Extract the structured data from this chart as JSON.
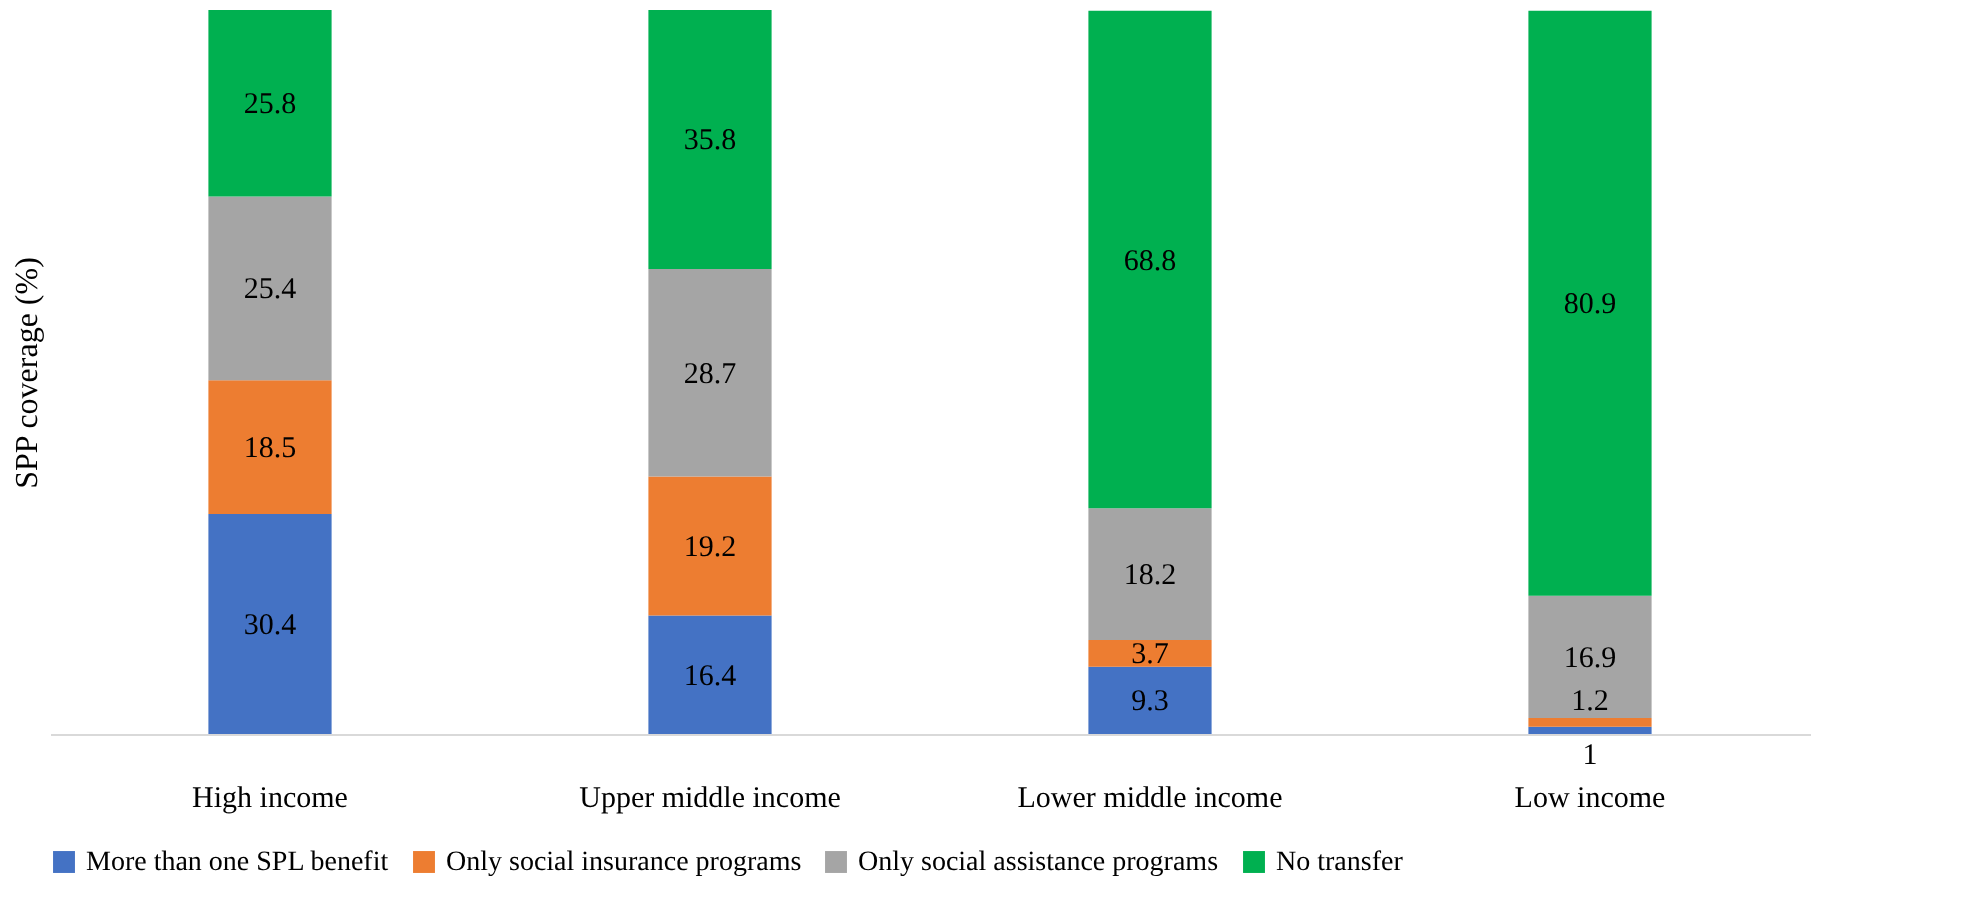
{
  "chart_data": {
    "type": "bar",
    "stacked": true,
    "ylabel": "SPP coverage (%)",
    "categories": [
      "High income",
      "Upper middle income",
      "Lower middle income",
      "Low income"
    ],
    "series": [
      {
        "name": "More than one SPL benefit",
        "color": "#4472c4",
        "values": [
          30.4,
          16.4,
          9.3,
          1
        ]
      },
      {
        "name": "Only social insurance programs",
        "color": "#ed7d31",
        "values": [
          18.5,
          19.2,
          3.7,
          1.2
        ]
      },
      {
        "name": "Only social assistance programs",
        "color": "#a5a5a5",
        "values": [
          25.4,
          28.7,
          18.2,
          16.9
        ]
      },
      {
        "name": "No transfer",
        "color": "#00b050",
        "values": [
          25.8,
          35.8,
          68.8,
          80.9
        ]
      }
    ],
    "data_labels": true,
    "legend": "bottom",
    "grid": false,
    "tick_labels": "x"
  }
}
